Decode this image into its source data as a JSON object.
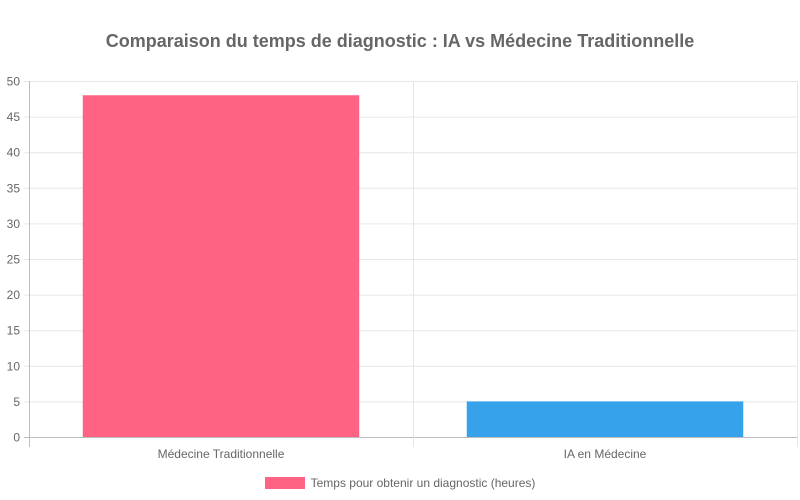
{
  "chart_data": {
    "type": "bar",
    "title": "Comparaison du temps de diagnostic : IA vs Médecine Traditionnelle",
    "categories": [
      "Médecine Traditionnelle",
      "IA en Médecine"
    ],
    "series": [
      {
        "name": "Temps pour obtenir un diagnostic (heures)",
        "values": [
          48,
          5
        ],
        "colors": [
          "#ff6384",
          "#36a2eb"
        ]
      }
    ],
    "xlabel": "",
    "ylabel": "",
    "ylim": [
      0,
      50
    ],
    "yticks": [
      0,
      5,
      10,
      15,
      20,
      25,
      30,
      35,
      40,
      45,
      50
    ],
    "grid": true,
    "legend_position": "bottom"
  },
  "legend": {
    "label": "Temps pour obtenir un diagnostic (heures)",
    "color": "#ff6384"
  }
}
